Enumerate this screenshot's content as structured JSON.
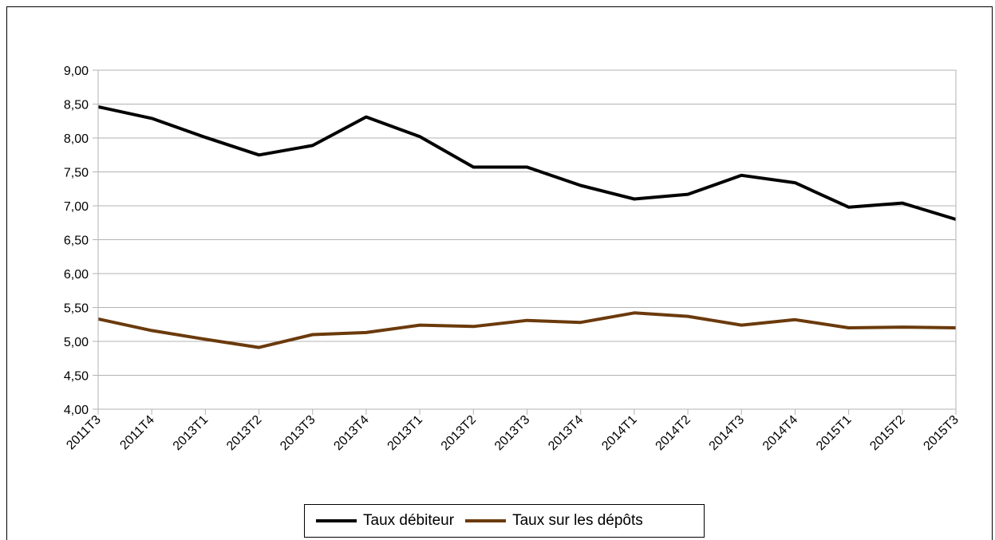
{
  "chart_data": {
    "type": "line",
    "categories": [
      "2011T3",
      "2011T4",
      "2013T1",
      "2013T2",
      "2013T3",
      "2013T4",
      "2013T1",
      "2013T2",
      "2013T3",
      "2013T4",
      "2014T1",
      "2014T2",
      "2014T3",
      "2014T4",
      "2015T1",
      "2015T2",
      "2015T3"
    ],
    "series": [
      {
        "name": "Taux débiteur",
        "color": "#000000",
        "values": [
          8.46,
          8.29,
          8.01,
          7.75,
          7.89,
          8.31,
          8.02,
          7.57,
          7.57,
          7.3,
          7.1,
          7.17,
          7.45,
          7.34,
          6.98,
          7.04,
          6.8
        ]
      },
      {
        "name": "Taux sur les dépôts",
        "color": "#6b3a0c",
        "values": [
          5.33,
          5.16,
          5.03,
          4.91,
          5.1,
          5.13,
          5.24,
          5.22,
          5.31,
          5.28,
          5.42,
          5.37,
          5.24,
          5.32,
          5.2,
          5.21,
          5.2
        ]
      }
    ],
    "ylim": [
      4.0,
      9.0
    ],
    "yticks": [
      "4,00",
      "4,50",
      "5,00",
      "5,50",
      "6,00",
      "6,50",
      "7,00",
      "7,50",
      "8,00",
      "8,50",
      "9,00"
    ],
    "grid": true,
    "legend_position": "bottom"
  }
}
